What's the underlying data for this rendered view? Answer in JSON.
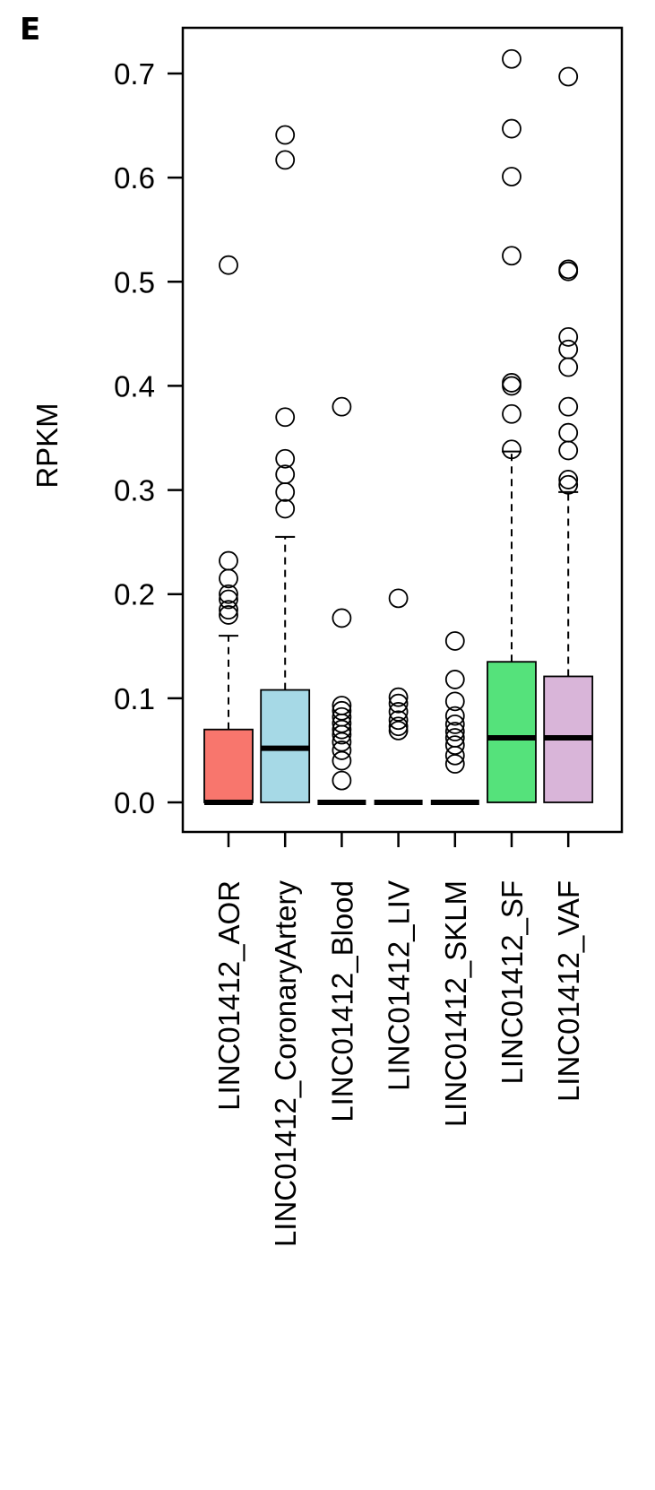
{
  "panel_label": "E",
  "chart_data": {
    "type": "box",
    "title": "",
    "xlabel": "",
    "ylabel": "RPKM",
    "ylim": [
      0,
      0.7
    ],
    "yticks": [
      0.0,
      0.1,
      0.2,
      0.3,
      0.4,
      0.5,
      0.6,
      0.7
    ],
    "ytick_labels": [
      "0.0",
      "0.1",
      "0.2",
      "0.3",
      "0.4",
      "0.5",
      "0.6",
      "0.7"
    ],
    "grid": false,
    "legend": "none",
    "categories": [
      "LINC01412_AOR",
      "LINC01412_CoronaryArtery",
      "LINC01412_Blood",
      "LINC01412_LIV",
      "LINC01412_SKLM",
      "LINC01412_SF",
      "LINC01412_VAF"
    ],
    "boxes": [
      {
        "category": "LINC01412_AOR",
        "color": "#F8766D",
        "min": 0.0,
        "q1": 0.0,
        "median": 0.0,
        "q3": 0.07,
        "max": 0.16,
        "outliers": [
          0.18,
          0.185,
          0.195,
          0.2,
          0.215,
          0.232,
          0.516
        ]
      },
      {
        "category": "LINC01412_CoronaryArtery",
        "color": "#A6D9E6",
        "min": 0.0,
        "q1": 0.0,
        "median": 0.052,
        "q3": 0.108,
        "max": 0.255,
        "outliers": [
          0.282,
          0.298,
          0.315,
          0.33,
          0.37,
          0.617,
          0.641
        ]
      },
      {
        "category": "LINC01412_Blood",
        "color": "#FFFFFF",
        "min": 0.0,
        "q1": 0.0,
        "median": 0.0,
        "q3": 0.0,
        "max": 0.0,
        "outliers": [
          0.021,
          0.04,
          0.05,
          0.058,
          0.065,
          0.07,
          0.076,
          0.082,
          0.088,
          0.093,
          0.177,
          0.38
        ]
      },
      {
        "category": "LINC01412_LIV",
        "color": "#FFFFFF",
        "min": 0.0,
        "q1": 0.0,
        "median": 0.0,
        "q3": 0.0,
        "max": 0.0,
        "outliers": [
          0.069,
          0.073,
          0.079,
          0.087,
          0.095,
          0.101,
          0.196
        ]
      },
      {
        "category": "LINC01412_SKLM",
        "color": "#FFFFFF",
        "min": 0.0,
        "q1": 0.0,
        "median": 0.0,
        "q3": 0.0,
        "max": 0.0,
        "outliers": [
          0.037,
          0.045,
          0.055,
          0.062,
          0.068,
          0.075,
          0.083,
          0.097,
          0.118,
          0.155
        ]
      },
      {
        "category": "LINC01412_SF",
        "color": "#55E27B",
        "min": 0.0,
        "q1": 0.0,
        "median": 0.062,
        "q3": 0.135,
        "max": 0.337,
        "outliers": [
          0.339,
          0.373,
          0.4,
          0.403,
          0.525,
          0.601,
          0.647,
          0.714
        ]
      },
      {
        "category": "LINC01412_VAF",
        "color": "#D9B5D9",
        "min": 0.0,
        "q1": 0.0,
        "median": 0.062,
        "q3": 0.121,
        "max": 0.298,
        "outliers": [
          0.305,
          0.31,
          0.338,
          0.355,
          0.38,
          0.418,
          0.435,
          0.447,
          0.51,
          0.512,
          0.697
        ]
      }
    ]
  }
}
